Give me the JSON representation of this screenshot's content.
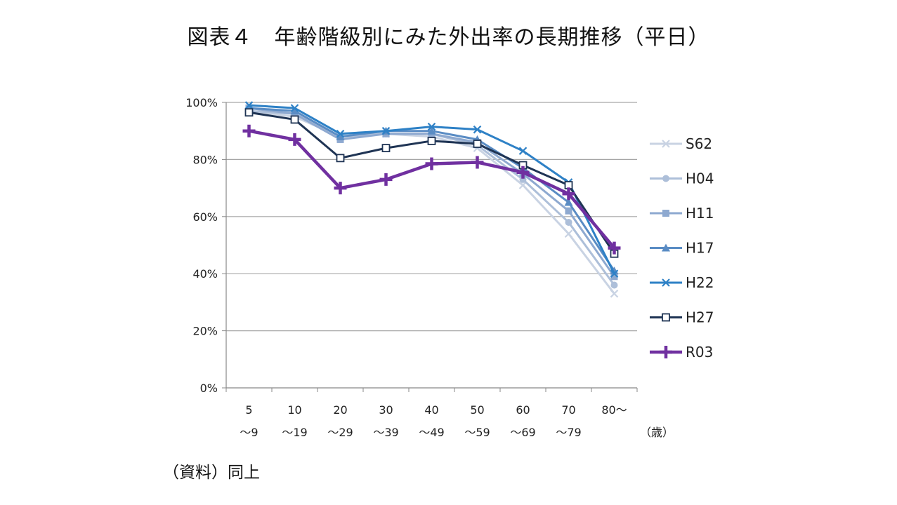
{
  "title": "図表４　年齢階級別にみた外出率の長期推移（平日）",
  "source": "（資料）同上",
  "chart_data": {
    "type": "line",
    "categories": [
      {
        "top": "5",
        "bottom": "～9"
      },
      {
        "top": "10",
        "bottom": "～19"
      },
      {
        "top": "20",
        "bottom": "～29"
      },
      {
        "top": "30",
        "bottom": "～39"
      },
      {
        "top": "40",
        "bottom": "～49"
      },
      {
        "top": "50",
        "bottom": "～59"
      },
      {
        "top": "60",
        "bottom": "～69"
      },
      {
        "top": "70",
        "bottom": "～79"
      },
      {
        "top": "80～",
        "bottom": ""
      }
    ],
    "xlabel": "（歳）",
    "ylim": [
      0,
      100
    ],
    "yticks": [
      "0%",
      "20%",
      "40%",
      "60%",
      "80%",
      "100%"
    ],
    "grid": true,
    "legend_position": "right",
    "series": [
      {
        "name": "S62",
        "color": "#c9d3e3",
        "marker": "x-light",
        "values": [
          97,
          95,
          88,
          89,
          88,
          84,
          71,
          54,
          33
        ]
      },
      {
        "name": "H04",
        "color": "#adbfd9",
        "marker": "circle",
        "values": [
          97,
          96,
          88,
          89,
          89,
          85,
          73,
          58,
          36
        ]
      },
      {
        "name": "H11",
        "color": "#8ea9d0",
        "marker": "square",
        "values": [
          98,
          96,
          87,
          89,
          89,
          86,
          75,
          62,
          39
        ]
      },
      {
        "name": "H17",
        "color": "#5a8cc4",
        "marker": "triangle",
        "values": [
          98,
          97,
          88,
          90,
          90,
          87,
          77,
          65,
          41
        ]
      },
      {
        "name": "H22",
        "color": "#2e81c6",
        "marker": "x",
        "values": [
          99,
          98,
          89,
          90,
          91.5,
          90.5,
          83,
          72,
          40
        ]
      },
      {
        "name": "H27",
        "color": "#1f3454",
        "marker": "square-open",
        "values": [
          96.5,
          94,
          80.5,
          84,
          86.5,
          85.5,
          78,
          71,
          47
        ]
      },
      {
        "name": "R03",
        "color": "#7030a0",
        "marker": "plus",
        "values": [
          90,
          87,
          70,
          73,
          78.5,
          79,
          75.5,
          68,
          49
        ]
      }
    ]
  }
}
